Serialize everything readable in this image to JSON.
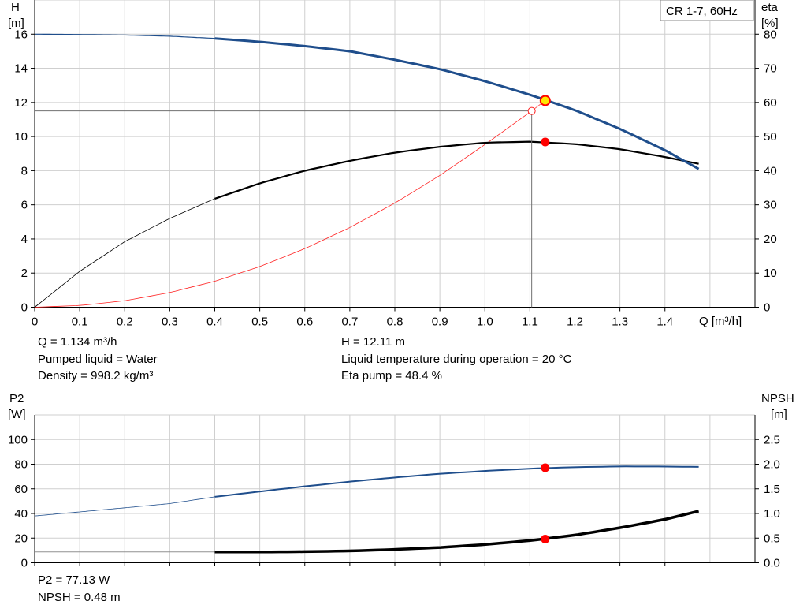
{
  "chart_data": [
    {
      "type": "line",
      "title": "CR 1-7, 60Hz",
      "xlabel": "Q [m³/h]",
      "ylabel_top": "H",
      "ylabel_unit": "[m]",
      "y2label_top": "eta",
      "y2label_unit": "[%]",
      "xlim": [
        0,
        1.6
      ],
      "ylim": [
        0,
        18
      ],
      "y2lim": [
        0,
        90
      ],
      "grid": true,
      "x_ticks": [
        "0",
        "0.1",
        "0.2",
        "0.3",
        "0.4",
        "0.5",
        "0.6",
        "0.7",
        "0.8",
        "0.9",
        "1.0",
        "1.1",
        "1.2",
        "1.3",
        "1.4"
      ],
      "y_ticks": [
        "0",
        "2",
        "4",
        "6",
        "8",
        "10",
        "12",
        "14",
        "16"
      ],
      "y2_ticks": [
        "0",
        "10",
        "20",
        "30",
        "40",
        "50",
        "60",
        "70",
        "80"
      ],
      "series": [
        {
          "name": "H",
          "axis": "left",
          "color": "#1f4e8c",
          "x": [
            0,
            0.1,
            0.2,
            0.3,
            0.4,
            0.5,
            0.6,
            0.7,
            0.8,
            0.9,
            1.0,
            1.1,
            1.2,
            1.3,
            1.4,
            1.475
          ],
          "y": [
            16.0,
            15.98,
            15.95,
            15.88,
            15.75,
            15.55,
            15.3,
            15.0,
            14.5,
            13.95,
            13.25,
            12.45,
            11.55,
            10.45,
            9.2,
            8.1
          ]
        },
        {
          "name": "eta",
          "axis": "right",
          "color": "#000000",
          "x": [
            0,
            0.1,
            0.2,
            0.3,
            0.4,
            0.5,
            0.6,
            0.7,
            0.8,
            0.9,
            1.0,
            1.1,
            1.2,
            1.3,
            1.4,
            1.475
          ],
          "y": [
            0,
            10.5,
            19.2,
            26.0,
            31.8,
            36.3,
            40.0,
            42.9,
            45.3,
            47.0,
            48.2,
            48.5,
            47.8,
            46.3,
            44.0,
            42.0
          ]
        },
        {
          "name": "system curve",
          "axis": "left",
          "color": "#ff2020",
          "x": [
            0,
            0.1,
            0.2,
            0.3,
            0.4,
            0.5,
            0.6,
            0.7,
            0.8,
            0.9,
            1.0,
            1.104
          ],
          "y": [
            0,
            0.1,
            0.38,
            0.86,
            1.52,
            2.38,
            3.43,
            4.67,
            6.1,
            7.72,
            9.53,
            11.5
          ]
        }
      ],
      "duty_point": {
        "x": 1.134,
        "y": 12.11,
        "eta": 48.4
      },
      "system_point": {
        "x": 1.104,
        "y": 11.5
      }
    },
    {
      "type": "line",
      "xlabel": "",
      "ylabel_top": "P2",
      "ylabel_unit": "[W]",
      "y2label_top": "NPSH",
      "y2label_unit": "[m]",
      "xlim": [
        0,
        1.6
      ],
      "ylim": [
        0,
        120
      ],
      "y2lim": [
        0,
        3.0
      ],
      "grid": true,
      "y_ticks": [
        "0",
        "20",
        "40",
        "60",
        "80",
        "100"
      ],
      "y2_ticks": [
        "0.0",
        "0.5",
        "1.0",
        "1.5",
        "2.0",
        "2.5"
      ],
      "series": [
        {
          "name": "P2",
          "axis": "left",
          "color": "#1f4e8c",
          "x": [
            0,
            0.1,
            0.2,
            0.3,
            0.4,
            0.5,
            0.6,
            0.7,
            0.8,
            0.9,
            1.0,
            1.1,
            1.2,
            1.3,
            1.4,
            1.475
          ],
          "y": [
            38,
            41.3,
            44.6,
            48.0,
            53.5,
            57.8,
            62.0,
            65.8,
            69.2,
            72.2,
            74.5,
            76.4,
            77.6,
            78.2,
            78.1,
            77.8
          ]
        },
        {
          "name": "NPSH",
          "axis": "right",
          "color": "#000000",
          "x": [
            0,
            0.4,
            0.5,
            0.6,
            0.7,
            0.8,
            0.9,
            1.0,
            1.1,
            1.2,
            1.3,
            1.4,
            1.475
          ],
          "y": [
            0.22,
            0.22,
            0.22,
            0.225,
            0.24,
            0.27,
            0.31,
            0.37,
            0.45,
            0.56,
            0.71,
            0.88,
            1.05
          ]
        }
      ],
      "duty_point": {
        "x": 1.134,
        "p2": 77.13,
        "npsh": 0.48
      }
    }
  ],
  "info": {
    "q": "Q = 1.134 m³/h",
    "liquid": "Pumped liquid = Water",
    "density": "Density = 998.2 kg/m³",
    "h": "H = 12.11 m",
    "temp": "Liquid temperature during operation = 20 °C",
    "eta": "Eta pump = 48.4 %",
    "p2": "P2 = 77.13 W",
    "npsh": "NPSH = 0.48 m"
  }
}
